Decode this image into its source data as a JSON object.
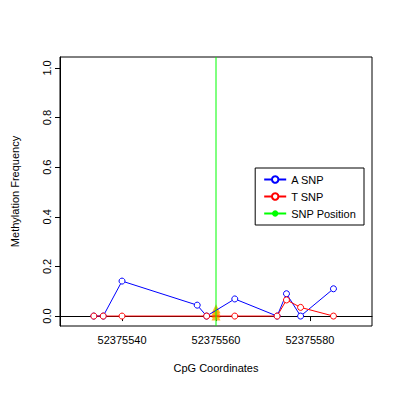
{
  "chart_data": {
    "type": "line",
    "x_label": "CpG Coordinates",
    "y_label": "Methylation Frequency",
    "xlim": [
      52375526.8,
      52375593.2
    ],
    "ylim": [
      -0.04,
      1.044
    ],
    "xticks": [
      52375540,
      52375560,
      52375580
    ],
    "yticks": [
      {
        "value": 0,
        "label": "0.0"
      },
      0.2,
      0.4,
      0.6,
      0.8,
      {
        "value": 1,
        "label": "1.0"
      }
    ],
    "grid": false,
    "legend": "right",
    "marker": "circle",
    "series": [
      {
        "name": "A SNP",
        "color": "#0000ff",
        "x": [
          52375534,
          52375536,
          52375540,
          52375556,
          52375558,
          52375564,
          52375573,
          52375575,
          52375578,
          52375585
        ],
        "values": [
          0,
          0,
          0.141,
          0.044,
          0,
          0.069,
          0,
          0.09,
          0,
          0.11
        ]
      },
      {
        "name": "T SNP",
        "color": "#ff0000",
        "x": [
          52375534,
          52375536,
          52375540,
          52375558,
          52375564,
          52375573,
          52375575,
          52375578,
          52375585
        ],
        "values": [
          0,
          0,
          0,
          0,
          0,
          0,
          0.065,
          0.035,
          0
        ]
      },
      {
        "name": "SNP Position",
        "type": "vline",
        "color": "#00ff00",
        "x": [
          52375560
        ]
      }
    ],
    "snp_markers": {
      "x": [
        52375560,
        52375560,
        52375560,
        52375560
      ],
      "values": [
        0,
        0.01,
        0.02,
        0.03
      ],
      "color": "#ffa500",
      "marker": "triangle"
    }
  }
}
